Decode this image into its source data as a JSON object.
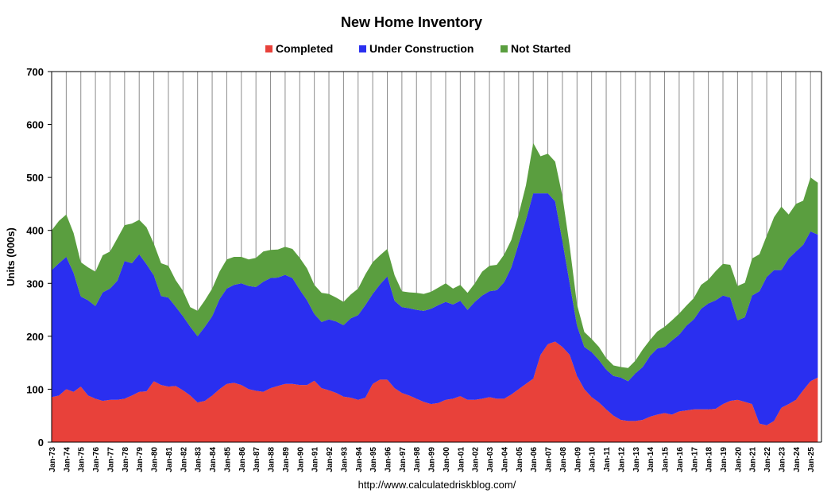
{
  "chart_data": {
    "type": "area",
    "stacked": true,
    "title": "New Home Inventory",
    "ylabel": "Units (000s)",
    "source": "http://www.calculatedriskblog.com/",
    "ylim": [
      0,
      700
    ],
    "yticks": [
      "0",
      "100",
      "200",
      "300",
      "400",
      "500",
      "600",
      "700"
    ],
    "xticks": [
      "Jan-73",
      "Jan-74",
      "Jan-75",
      "Jan-76",
      "Jan-77",
      "Jan-78",
      "Jan-79",
      "Jan-80",
      "Jan-81",
      "Jan-82",
      "Jan-83",
      "Jan-84",
      "Jan-85",
      "Jan-86",
      "Jan-87",
      "Jan-88",
      "Jan-89",
      "Jan-90",
      "Jan-91",
      "Jan-92",
      "Jan-93",
      "Jan-94",
      "Jan-95",
      "Jan-96",
      "Jan-97",
      "Jan-98",
      "Jan-99",
      "Jan-00",
      "Jan-01",
      "Jan-02",
      "Jan-03",
      "Jan-04",
      "Jan-05",
      "Jan-06",
      "Jan-07",
      "Jan-08",
      "Jan-09",
      "Jan-10",
      "Jan-11",
      "Jan-12",
      "Jan-13",
      "Jan-14",
      "Jan-15",
      "Jan-16",
      "Jan-17",
      "Jan-18",
      "Jan-19",
      "Jan-20",
      "Jan-21",
      "Jan-22",
      "Jan-23",
      "Jan-24",
      "Jan-25"
    ],
    "grid": "vertical",
    "legend_position": "top",
    "x": [
      1973.0,
      1973.5,
      1974.0,
      1974.5,
      1975.0,
      1975.5,
      1976.0,
      1976.5,
      1977.0,
      1977.5,
      1978.0,
      1978.5,
      1979.0,
      1979.5,
      1980.0,
      1980.5,
      1981.0,
      1981.5,
      1982.0,
      1982.5,
      1983.0,
      1983.5,
      1984.0,
      1984.5,
      1985.0,
      1985.5,
      1986.0,
      1986.5,
      1987.0,
      1987.5,
      1988.0,
      1988.5,
      1989.0,
      1989.5,
      1990.0,
      1990.5,
      1991.0,
      1991.5,
      1992.0,
      1992.5,
      1993.0,
      1993.5,
      1994.0,
      1994.5,
      1995.0,
      1995.5,
      1996.0,
      1996.5,
      1997.0,
      1997.5,
      1998.0,
      1998.5,
      1999.0,
      1999.5,
      2000.0,
      2000.5,
      2001.0,
      2001.5,
      2002.0,
      2002.5,
      2003.0,
      2003.5,
      2004.0,
      2004.5,
      2005.0,
      2005.5,
      2006.0,
      2006.5,
      2007.0,
      2007.5,
      2008.0,
      2008.5,
      2009.0,
      2009.5,
      2010.0,
      2010.5,
      2011.0,
      2011.5,
      2012.0,
      2012.5,
      2013.0,
      2013.5,
      2014.0,
      2014.5,
      2015.0,
      2015.5,
      2016.0,
      2016.5,
      2017.0,
      2017.5,
      2018.0,
      2018.5,
      2019.0,
      2019.5,
      2020.0,
      2020.5,
      2021.0,
      2021.5,
      2022.0,
      2022.5,
      2023.0,
      2023.5,
      2024.0,
      2024.5,
      2025.0,
      2025.5
    ],
    "series": [
      {
        "name": "Completed",
        "color": "#e8413a",
        "values": [
          85,
          88,
          100,
          95,
          105,
          88,
          82,
          78,
          80,
          80,
          82,
          88,
          95,
          96,
          115,
          108,
          105,
          106,
          98,
          88,
          75,
          78,
          88,
          100,
          110,
          112,
          108,
          100,
          97,
          95,
          102,
          106,
          110,
          110,
          108,
          108,
          116,
          102,
          98,
          93,
          86,
          84,
          80,
          84,
          110,
          118,
          118,
          102,
          93,
          88,
          82,
          76,
          72,
          74,
          80,
          82,
          87,
          80,
          80,
          82,
          85,
          82,
          82,
          90,
          100,
          110,
          120,
          165,
          185,
          190,
          180,
          165,
          125,
          100,
          85,
          75,
          62,
          50,
          42,
          40,
          40,
          42,
          48,
          52,
          55,
          52,
          58,
          60,
          62,
          62,
          62,
          63,
          72,
          78,
          80,
          76,
          72,
          35,
          32,
          40,
          65,
          72,
          80,
          98,
          115,
          122
        ]
      },
      {
        "name": "Under Construction",
        "color": "#2a2ff0",
        "values": [
          240,
          250,
          250,
          225,
          170,
          180,
          175,
          205,
          210,
          225,
          260,
          250,
          260,
          240,
          200,
          168,
          168,
          150,
          140,
          130,
          125,
          140,
          150,
          170,
          180,
          185,
          192,
          195,
          196,
          208,
          208,
          205,
          206,
          200,
          180,
          160,
          126,
          125,
          134,
          135,
          135,
          150,
          160,
          175,
          170,
          180,
          195,
          165,
          162,
          165,
          168,
          172,
          180,
          185,
          185,
          178,
          180,
          170,
          185,
          195,
          200,
          205,
          220,
          240,
          275,
          310,
          350,
          305,
          285,
          265,
          200,
          135,
          95,
          80,
          85,
          80,
          75,
          75,
          80,
          75,
          90,
          100,
          115,
          125,
          125,
          140,
          145,
          160,
          170,
          190,
          200,
          205,
          205,
          195,
          150,
          160,
          205,
          250,
          280,
          285,
          260,
          275,
          280,
          275,
          283,
          270
        ]
      },
      {
        "name": "Not Started",
        "color": "#5a9e3f",
        "values": [
          75,
          80,
          80,
          75,
          65,
          62,
          65,
          70,
          70,
          80,
          68,
          75,
          65,
          70,
          60,
          62,
          60,
          50,
          48,
          37,
          48,
          50,
          52,
          52,
          55,
          53,
          50,
          50,
          55,
          57,
          53,
          53,
          53,
          55,
          60,
          60,
          55,
          55,
          48,
          45,
          44,
          45,
          50,
          58,
          60,
          55,
          52,
          48,
          30,
          30,
          32,
          32,
          32,
          33,
          35,
          30,
          30,
          32,
          35,
          45,
          48,
          48,
          52,
          52,
          55,
          65,
          95,
          70,
          75,
          75,
          85,
          70,
          40,
          28,
          25,
          25,
          22,
          20,
          20,
          25,
          24,
          33,
          30,
          32,
          38,
          38,
          40,
          38,
          40,
          45,
          45,
          55,
          60,
          62,
          65,
          65,
          70,
          70,
          78,
          100,
          120,
          83,
          90,
          83,
          102,
          98
        ]
      }
    ]
  }
}
